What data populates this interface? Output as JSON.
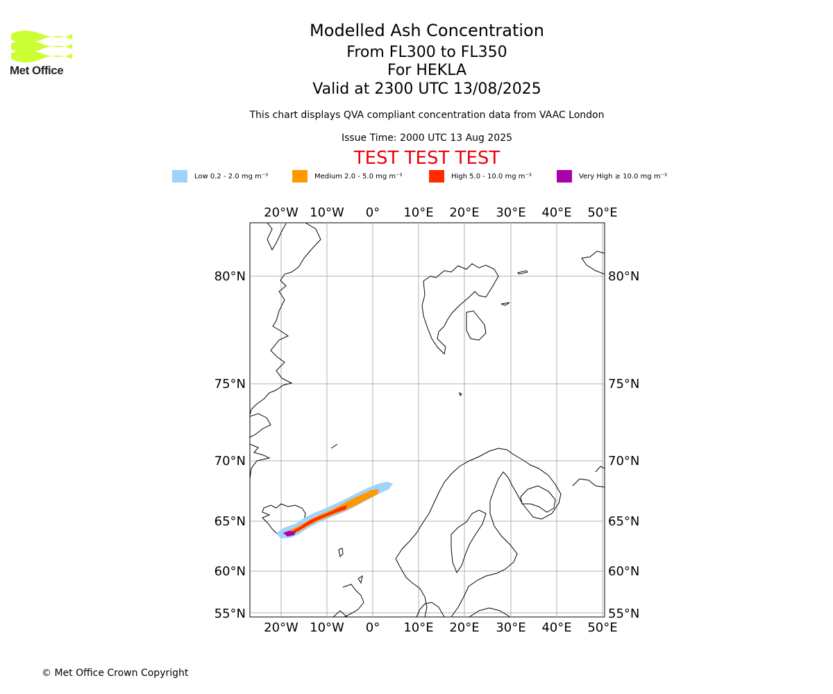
{
  "brand": {
    "name": "Met Office",
    "color": "#ccff33"
  },
  "titles": {
    "main": "Modelled Ash Concentration",
    "levels": "From FL300 to FL350",
    "volcano": "For HEKLA",
    "valid": "Valid at 2300 UTC 13/08/2025"
  },
  "subtitle": "This chart displays QVA compliant concentration data from VAAC London",
  "issue_time": "Issue Time: 2000 UTC 13 Aug 2025",
  "test_banner": "TEST TEST TEST",
  "legend": [
    {
      "label": "Low 0.2 - 2.0 mg m⁻³",
      "color": "#9fd3fb"
    },
    {
      "label": "Medium 2.0 - 5.0 mg m⁻³",
      "color": "#ff9900"
    },
    {
      "label": "High 5.0 - 10.0 mg m⁻³",
      "color": "#ff2a00"
    },
    {
      "label": "Very High ≥ 10.0 mg m⁻³",
      "color": "#aa00aa"
    }
  ],
  "map": {
    "lon_labels": [
      "20°W",
      "10°W",
      "0°",
      "10°E",
      "20°E",
      "30°E",
      "40°E",
      "50°E"
    ],
    "lat_labels": [
      "80°N",
      "75°N",
      "70°N",
      "65°N",
      "60°N",
      "55°N"
    ]
  },
  "copyright": "© Met Office Crown Copyright"
}
